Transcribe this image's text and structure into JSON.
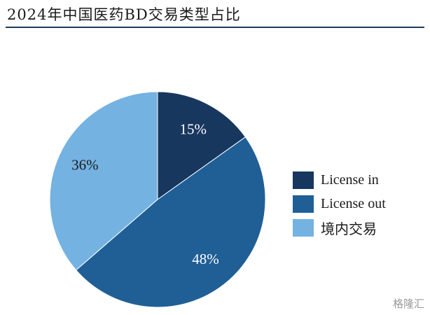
{
  "title": "2024年中国医药BD交易类型占比",
  "watermark": "格隆汇",
  "chart_data": {
    "type": "pie",
    "start_angle_deg": 0,
    "direction": "clockwise",
    "slices": [
      {
        "label": "License in",
        "value": 15,
        "value_label": "15%",
        "color": "#17375e",
        "label_color": "#ffffff"
      },
      {
        "label": "License out",
        "value": 48,
        "value_label": "48%",
        "color": "#1f5f96",
        "label_color": "#ffffff"
      },
      {
        "label": "境内交易",
        "value": 36,
        "value_label": "36%",
        "color": "#74b2e1",
        "label_color": "#1a1a1a"
      }
    ],
    "legend_position": "right"
  }
}
